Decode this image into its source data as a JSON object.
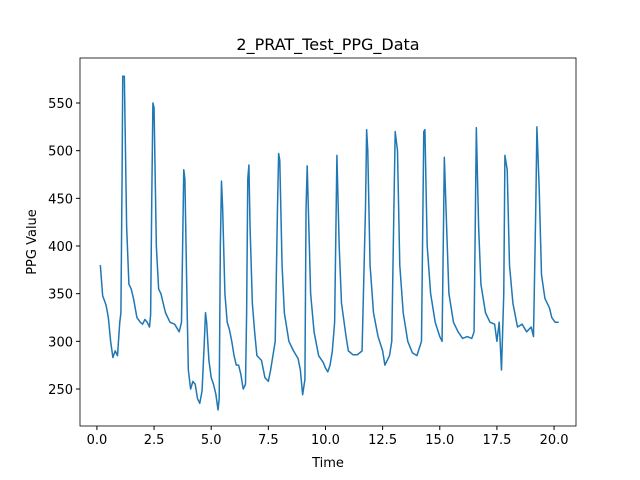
{
  "chart_data": {
    "type": "line",
    "title": "2_PRAT_Test_PPG_Data",
    "x_label": "Time",
    "y_label": "PPG Value",
    "xlim": [
      -0.74,
      20.96
    ],
    "ylim": [
      211.2,
      597.2
    ],
    "xticks": [
      {
        "value": 0,
        "label": "0.0"
      },
      2.5,
      {
        "value": 5,
        "label": "5.0"
      },
      7.5,
      {
        "value": 10,
        "label": "10.0"
      },
      12.5,
      {
        "value": 15,
        "label": "15.0"
      },
      17.5,
      {
        "value": 20,
        "label": "20.0"
      }
    ],
    "yticks": [
      250,
      300,
      350,
      400,
      450,
      500,
      550
    ],
    "series": [
      {
        "color": "#1f77b4",
        "x": [
          0.15,
          0.25,
          0.4,
          0.5,
          0.6,
          0.7,
          0.8,
          0.9,
          1.0,
          1.05,
          1.1,
          1.13,
          1.2,
          1.3,
          1.4,
          1.5,
          1.6,
          1.75,
          1.9,
          2.0,
          2.1,
          2.2,
          2.3,
          2.35,
          2.4,
          2.45,
          2.5,
          2.6,
          2.7,
          2.8,
          3.0,
          3.2,
          3.4,
          3.6,
          3.7,
          3.75,
          3.8,
          3.85,
          3.95,
          4.0,
          4.1,
          4.2,
          4.3,
          4.4,
          4.5,
          4.6,
          4.7,
          4.75,
          4.8,
          4.9,
          5.0,
          5.1,
          5.2,
          5.3,
          5.35,
          5.4,
          5.45,
          5.5,
          5.6,
          5.7,
          5.8,
          5.9,
          6.0,
          6.1,
          6.2,
          6.3,
          6.4,
          6.5,
          6.55,
          6.6,
          6.65,
          6.7,
          6.8,
          6.9,
          7.0,
          7.2,
          7.35,
          7.5,
          7.6,
          7.8,
          7.9,
          7.95,
          8.0,
          8.1,
          8.2,
          8.4,
          8.6,
          8.8,
          8.9,
          9.0,
          9.1,
          9.15,
          9.2,
          9.25,
          9.35,
          9.5,
          9.7,
          9.9,
          10.0,
          10.1,
          10.2,
          10.3,
          10.4,
          10.5,
          10.6,
          10.7,
          10.9,
          11.0,
          11.2,
          11.4,
          11.6,
          11.75,
          11.8,
          11.85,
          11.95,
          12.1,
          12.3,
          12.5,
          12.6,
          12.8,
          12.9,
          13.0,
          13.05,
          13.15,
          13.25,
          13.4,
          13.6,
          13.8,
          14.0,
          14.2,
          14.3,
          14.35,
          14.45,
          14.6,
          14.8,
          15.0,
          15.1,
          15.2,
          15.3,
          15.4,
          15.6,
          15.8,
          16.0,
          16.2,
          16.4,
          16.5,
          16.6,
          16.7,
          16.8,
          17.0,
          17.2,
          17.4,
          17.5,
          17.6,
          17.7,
          17.8,
          17.85,
          17.95,
          18.05,
          18.2,
          18.4,
          18.6,
          18.8,
          19.0,
          19.1,
          19.2,
          19.25,
          19.35,
          19.45,
          19.6,
          19.8,
          19.9,
          20.05,
          20.2
        ],
        "values": [
          380,
          348,
          338,
          325,
          300,
          283,
          290,
          285,
          320,
          330,
          470,
          578,
          578,
          420,
          360,
          355,
          345,
          325,
          320,
          318,
          323,
          320,
          315,
          328,
          450,
          550,
          545,
          400,
          355,
          350,
          330,
          320,
          318,
          310,
          320,
          400,
          480,
          470,
          330,
          270,
          250,
          258,
          255,
          240,
          235,
          248,
          300,
          330,
          320,
          280,
          262,
          255,
          245,
          228,
          240,
          400,
          468,
          440,
          350,
          320,
          312,
          300,
          285,
          275,
          275,
          265,
          250,
          255,
          330,
          470,
          485,
          420,
          340,
          310,
          285,
          280,
          262,
          258,
          270,
          300,
          440,
          497,
          490,
          380,
          330,
          300,
          290,
          282,
          270,
          244,
          260,
          440,
          484,
          440,
          350,
          310,
          285,
          278,
          272,
          268,
          275,
          290,
          320,
          495,
          400,
          340,
          305,
          290,
          286,
          286,
          290,
          440,
          522,
          500,
          380,
          330,
          305,
          290,
          275,
          285,
          300,
          450,
          520,
          500,
          380,
          330,
          300,
          288,
          285,
          300,
          520,
          522,
          400,
          350,
          320,
          305,
          300,
          493,
          420,
          350,
          320,
          310,
          303,
          305,
          303,
          310,
          524,
          420,
          360,
          330,
          320,
          318,
          300,
          320,
          270,
          350,
          495,
          480,
          380,
          340,
          315,
          318,
          310,
          315,
          305,
          440,
          525,
          460,
          370,
          345,
          335,
          325,
          320,
          320
        ]
      }
    ]
  }
}
